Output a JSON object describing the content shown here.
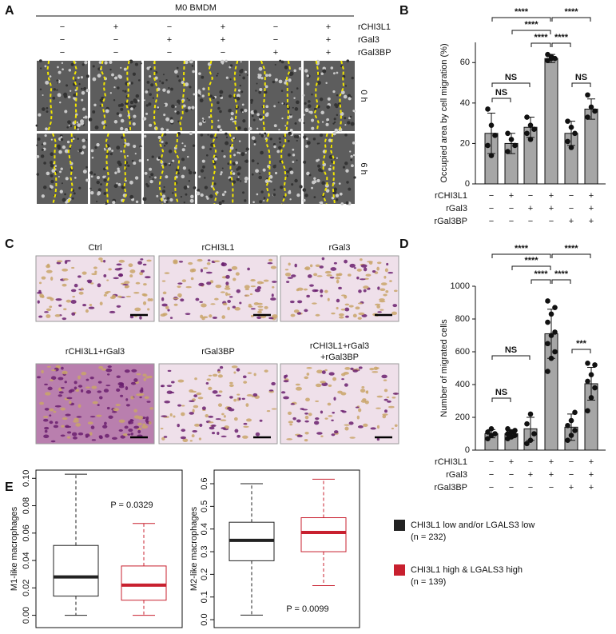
{
  "panel_labels": [
    "A",
    "B",
    "C",
    "D",
    "E"
  ],
  "panel_a": {
    "title": "M0 BMDM",
    "conditions": [
      {
        "name": "rCHI3L1",
        "values": [
          "−",
          "+",
          "−",
          "+",
          "−",
          "+"
        ]
      },
      {
        "name": "rGal3",
        "values": [
          "−",
          "−",
          "+",
          "+",
          "−",
          "+"
        ]
      },
      {
        "name": "rGal3BP",
        "values": [
          "−",
          "−",
          "−",
          "−",
          "+",
          "+"
        ]
      }
    ],
    "time_labels": [
      "0 h",
      "6 h"
    ]
  },
  "panel_c": {
    "image_labels": [
      "Ctrl",
      "rCHI3L1",
      "rGal3",
      "rCHI3L1+rGal3",
      "rGal3BP",
      [
        "rCHI3L1+rGal3",
        "+rGal3BP"
      ]
    ]
  },
  "legend": {
    "entries": [
      {
        "name": "CHI3L1 low and/or LGALS3 low",
        "note": "(n = 232)",
        "color": "#222222"
      },
      {
        "name": "CHI3L1 high & LGALS3 high",
        "note": "(n = 139)",
        "color": "#c8202f"
      }
    ]
  },
  "chart_data": [
    {
      "type": "bar",
      "ylabel": "Occupied area by cell migration (%)",
      "color": "#a6a6a6",
      "values": [
        25,
        20,
        28,
        62,
        25,
        37
      ],
      "errors": [
        10,
        5,
        5,
        2,
        6,
        5
      ],
      "points": [
        [
          37,
          29,
          24,
          19,
          14
        ],
        [
          25,
          22,
          19,
          16
        ],
        [
          33,
          29,
          27,
          25,
          22
        ],
        [
          64,
          63,
          62,
          61,
          62
        ],
        [
          31,
          28,
          25,
          21,
          18
        ],
        [
          44,
          38,
          36,
          33
        ]
      ],
      "ylim": [
        0,
        70
      ],
      "yticks": [
        0,
        20,
        40,
        60
      ],
      "significance": [
        "****",
        "****",
        "****",
        "****",
        "****",
        "NS",
        "NS",
        "NS"
      ],
      "conditions": [
        {
          "name": "rCHI3L1",
          "values": [
            "−",
            "+",
            "−",
            "+",
            "−",
            "+"
          ]
        },
        {
          "name": "rGal3",
          "values": [
            "−",
            "−",
            "+",
            "+",
            "−",
            "+"
          ]
        },
        {
          "name": "rGal3BP",
          "values": [
            "−",
            "−",
            "−",
            "−",
            "+",
            "+"
          ]
        }
      ]
    },
    {
      "type": "bar",
      "ylabel": "Number of migrated cells",
      "color": "#a6a6a6",
      "values": [
        100,
        100,
        130,
        710,
        140,
        405
      ],
      "errors": [
        25,
        25,
        70,
        150,
        80,
        100
      ],
      "points": [
        [
          70,
          90,
          100,
          110,
          130
        ],
        [
          70,
          80,
          90,
          100,
          110,
          120,
          130
        ],
        [
          40,
          60,
          100,
          160,
          220
        ],
        [
          480,
          560,
          600,
          650,
          700,
          720,
          780,
          830,
          870,
          910
        ],
        [
          60,
          90,
          120,
          150,
          180,
          230
        ],
        [
          240,
          320,
          380,
          420,
          460,
          520,
          530
        ]
      ],
      "ylim": [
        0,
        1000
      ],
      "yticks": [
        0,
        200,
        400,
        600,
        800,
        1000
      ],
      "significance": [
        "****",
        "****",
        "****",
        "****",
        "****",
        "NS",
        "NS",
        "***"
      ],
      "conditions": [
        {
          "name": "rCHI3L1",
          "values": [
            "−",
            "+",
            "−",
            "+",
            "−",
            "+"
          ]
        },
        {
          "name": "rGal3",
          "values": [
            "−",
            "−",
            "+",
            "+",
            "−",
            "+"
          ]
        },
        {
          "name": "rGal3BP",
          "values": [
            "−",
            "−",
            "−",
            "−",
            "+",
            "+"
          ]
        }
      ]
    },
    {
      "type": "box",
      "ylabel": "M1-like macrophages",
      "annotation": "P = 0.0329",
      "ylim": [
        -0.009,
        0.106
      ],
      "yticks": [
        {
          "value": 0,
          "label": "0.00"
        },
        {
          "value": 0.02,
          "label": "0.02"
        },
        {
          "value": 0.04,
          "label": "0.04"
        },
        {
          "value": 0.06,
          "label": "0.06"
        },
        {
          "value": 0.08,
          "label": "0.08"
        },
        {
          "value": 0.1,
          "label": "0.10"
        }
      ],
      "boxes": [
        {
          "color": "#222222",
          "whisker_low": 0,
          "q1": 0.014,
          "median": 0.028,
          "q3": 0.051,
          "whisker_high": 0.103
        },
        {
          "color": "#c8202f",
          "whisker_low": 0,
          "q1": 0.011,
          "median": 0.022,
          "q3": 0.036,
          "whisker_high": 0.067
        }
      ]
    },
    {
      "type": "box",
      "ylabel": "M2-like macrophages",
      "annotation": "P = 0.0099",
      "ylim": [
        -0.035,
        0.66
      ],
      "yticks": [
        {
          "value": 0,
          "label": "0.0"
        },
        0.1,
        0.2,
        0.3,
        0.4,
        0.5,
        0.6
      ],
      "boxes": [
        {
          "color": "#222222",
          "whisker_low": 0.02,
          "q1": 0.26,
          "median": 0.35,
          "q3": 0.43,
          "whisker_high": 0.6
        },
        {
          "color": "#c8202f",
          "whisker_low": 0.15,
          "q1": 0.3,
          "median": 0.385,
          "q3": 0.45,
          "whisker_high": 0.62
        }
      ]
    }
  ]
}
